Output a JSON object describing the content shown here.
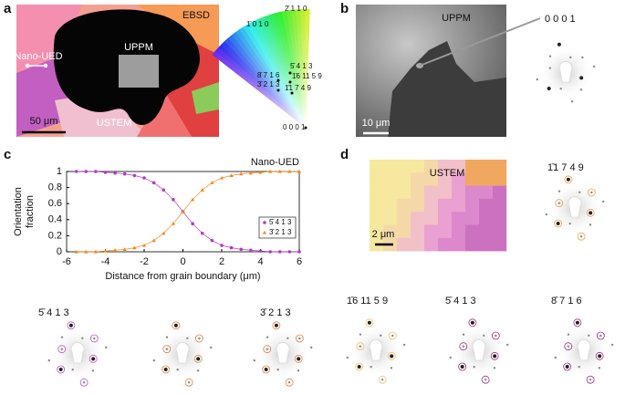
{
  "panels": {
    "a": {
      "label": "a",
      "ebsd": "EBSD",
      "uppm": "UPPM",
      "nano_ued": "Nano-UED",
      "ustem": "USTEM",
      "scale": "50 μm",
      "colormap": [
        "1̄ 0 1 0",
        "2̄ 1 1 0",
        "5̄ 4 1 3",
        "8̄ 7 1 6",
        "1̄6 11 5 9",
        "3̄ 2 1 3",
        "1̄1 7 4 9",
        "0 0 0 1"
      ]
    },
    "b": {
      "label": "b",
      "uppm": "UPPM",
      "pattern": "0 0 0 1",
      "scale": "10 μm"
    },
    "c": {
      "label": "c",
      "patterns": [
        "5̄ 4 1 3",
        "3̄ 2 1 3"
      ]
    },
    "d": {
      "label": "d",
      "ustem": "USTEM",
      "scale": "2 μm",
      "patterns": [
        "1̄1 7 4 9",
        "1̄6 11 5 9",
        "5̄ 4 1 3",
        "8̄ 7 1 6"
      ]
    }
  },
  "chart_data": {
    "type": "line",
    "title": "Nano-UED",
    "xlabel": "Distance from grain boundary (μm)",
    "ylabel": [
      "Orientation",
      "fraction"
    ],
    "x": [
      -5.5,
      -5,
      -4.5,
      -4,
      -3.5,
      -3,
      -2.5,
      -2,
      -1.5,
      -1,
      -0.5,
      0,
      0.5,
      1,
      1.5,
      2,
      2.5,
      3,
      3.5,
      4,
      4.5,
      5,
      5.5,
      6
    ],
    "series": [
      {
        "name": "5̄ 4 1 3",
        "color": "#b03cc0",
        "values": [
          1.0,
          1.0,
          1.0,
          0.99,
          0.98,
          0.97,
          0.95,
          0.92,
          0.86,
          0.77,
          0.65,
          0.5,
          0.35,
          0.23,
          0.14,
          0.08,
          0.05,
          0.03,
          0.02,
          0.01,
          0.0,
          0.0,
          0.0,
          0.0
        ]
      },
      {
        "name": "3̄ 2 1 3",
        "color": "#f08a24",
        "values": [
          0.0,
          0.0,
          0.0,
          0.01,
          0.02,
          0.03,
          0.05,
          0.08,
          0.14,
          0.23,
          0.35,
          0.5,
          0.65,
          0.77,
          0.86,
          0.92,
          0.95,
          0.97,
          0.98,
          0.99,
          1.0,
          1.0,
          1.0,
          1.0
        ]
      }
    ],
    "xlim": [
      -6,
      6
    ],
    "xticks": [
      -6,
      -4,
      -2,
      0,
      2,
      4,
      6
    ],
    "ylim": [
      0,
      1
    ],
    "yticks": [
      0,
      0.2,
      0.4,
      0.6,
      0.8,
      1
    ],
    "legend": "right"
  }
}
